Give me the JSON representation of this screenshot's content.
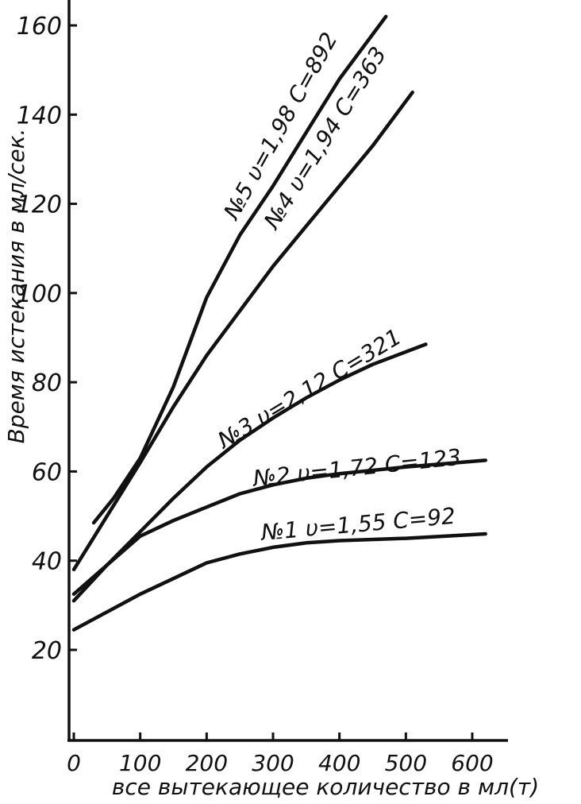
{
  "chart_data": {
    "type": "line",
    "xlabel": "все вытекающее количество в мл(т)",
    "ylabel": "Время истекания в мл/сек.",
    "xlim": [
      0,
      620
    ],
    "ylim": [
      0,
      165
    ],
    "x_ticks": [
      "0",
      "100",
      "200",
      "300",
      "400",
      "500",
      "600"
    ],
    "y_ticks": [
      "20",
      "40",
      "60",
      "80",
      "100",
      "120",
      "140",
      "160"
    ],
    "grid": false,
    "series": [
      {
        "name": "№1 υ=1,55 C=92",
        "x": [
          0,
          50,
          100,
          150,
          200,
          250,
          300,
          350,
          400,
          500,
          620
        ],
        "y": [
          24.5,
          28.5,
          32.5,
          36,
          39.5,
          41.5,
          43,
          44,
          44.5,
          45,
          46
        ]
      },
      {
        "name": "№2 υ=1,72 C=123",
        "x": [
          0,
          50,
          100,
          150,
          200,
          250,
          300,
          350,
          400,
          500,
          620
        ],
        "y": [
          31,
          39,
          45.5,
          49,
          52,
          55,
          57,
          58.5,
          59.5,
          61,
          62.5
        ]
      },
      {
        "name": "№3 υ=2,12 C=321",
        "x": [
          0,
          50,
          100,
          150,
          200,
          250,
          300,
          350,
          400,
          450,
          530
        ],
        "y": [
          32.5,
          39,
          46.5,
          54,
          61,
          67,
          72,
          76.5,
          80.5,
          84,
          88.5
        ]
      },
      {
        "name": "№4 υ=1,94 C=363",
        "x": [
          0,
          50,
          100,
          150,
          200,
          250,
          300,
          350,
          400,
          450,
          510
        ],
        "y": [
          38,
          50,
          62,
          74.5,
          86,
          96,
          106,
          115,
          124,
          133,
          145
        ]
      },
      {
        "name": "№5 υ=1,98 C=892",
        "x": [
          30,
          60,
          100,
          150,
          200,
          250,
          300,
          350,
          400,
          470
        ],
        "y": [
          48.5,
          54,
          63,
          79,
          99,
          113,
          124,
          136,
          148,
          162
        ]
      }
    ]
  }
}
